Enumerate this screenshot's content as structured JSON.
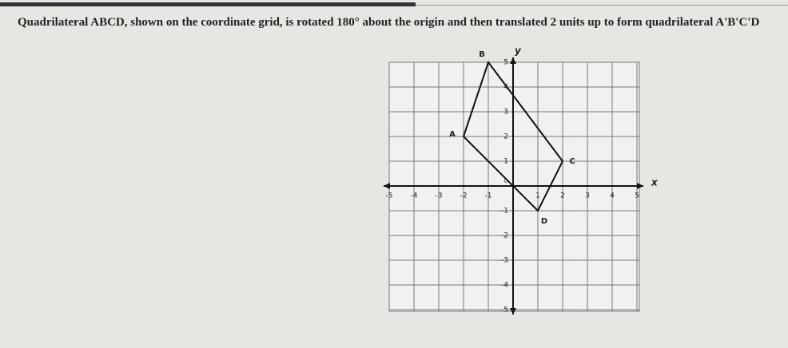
{
  "question": {
    "text": "Quadrilateral ABCD, shown on the coordinate grid, is rotated 180° about the origin and then translated 2 units up to form quadrilateral A'B'C'D"
  },
  "grid": {
    "ticks": [
      -5,
      -4,
      -3,
      -2,
      -1,
      0,
      1,
      2,
      3,
      4,
      5
    ],
    "x_label": "x",
    "y_label": "y"
  },
  "figure": {
    "vertices": [
      {
        "label": "A",
        "x": -2,
        "y": 2
      },
      {
        "label": "B",
        "x": -1,
        "y": 5
      },
      {
        "label": "C",
        "x": 2,
        "y": 1
      },
      {
        "label": "D",
        "x": 1,
        "y": -1
      }
    ]
  }
}
